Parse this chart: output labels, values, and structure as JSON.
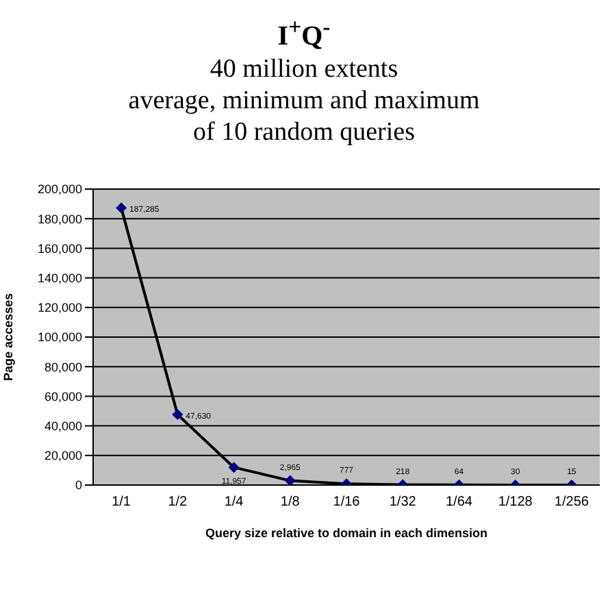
{
  "chart_data": {
    "type": "line",
    "title": "I$^{+}$Q$^{-}$",
    "subtitle": "40 million extents\naverage, minimum and maximum\nof 10 random queries",
    "xlabel": "Query size relative to domain in each dimension",
    "ylabel": "Page accesses",
    "categories": [
      "1/1",
      "1/2",
      "1/4",
      "1/8",
      "1/16",
      "1/32",
      "1/64",
      "1/128",
      "1/256"
    ],
    "series": [
      {
        "color": "#000000",
        "values": [
          187285,
          47630,
          11957,
          2965,
          777,
          218,
          64,
          30,
          15
        ],
        "value_labels": [
          "187,285",
          "47,630",
          "11,957",
          "2,965",
          "777",
          "218",
          "64",
          "30",
          "15"
        ]
      }
    ],
    "ylim": [
      0,
      200000
    ],
    "yticks": [
      0,
      {
        "value": 20000,
        "label": "20,000"
      },
      {
        "value": 40000,
        "label": "40,000"
      },
      {
        "value": 60000,
        "label": "60,000"
      },
      {
        "value": 80000,
        "label": "80,000"
      },
      {
        "value": 100000,
        "label": "100,000"
      },
      {
        "value": 120000,
        "label": "120,000"
      },
      {
        "value": 140000,
        "label": "140,000"
      },
      {
        "value": 160000,
        "label": "160,000"
      },
      {
        "value": 180000,
        "label": "180,000"
      },
      {
        "value": 200000,
        "label": "200,000"
      }
    ],
    "grid": "y",
    "marker": "diamond",
    "line_style": "solid"
  }
}
